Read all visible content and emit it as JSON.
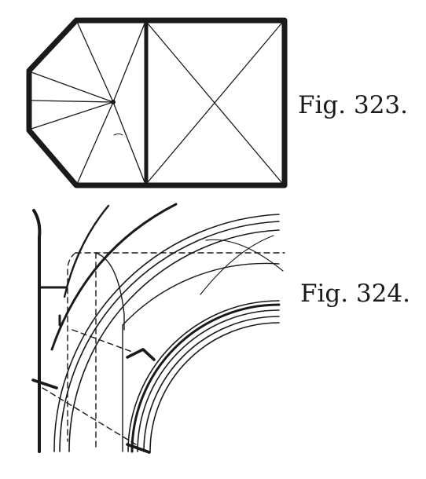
{
  "figures": [
    {
      "id": "323",
      "caption": "Fig. 323."
    },
    {
      "id": "324",
      "caption": "Fig. 324."
    }
  ],
  "colors": {
    "ink": "#1a1a1a",
    "paper": "#ffffff"
  }
}
